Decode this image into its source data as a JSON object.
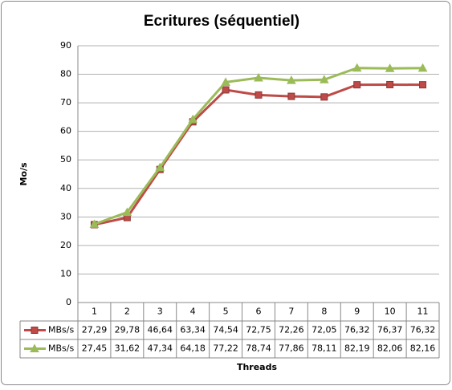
{
  "chart_data": {
    "type": "line",
    "title": "Ecritures (séquentiel)",
    "x_label": "Threads",
    "y_label": "Mo/s",
    "categories": [
      "1",
      "2",
      "3",
      "4",
      "5",
      "6",
      "7",
      "8",
      "9",
      "10",
      "11"
    ],
    "series": [
      {
        "name": "MBs/s",
        "color": "#be4b48",
        "marker": "square",
        "values": [
          27.29,
          29.78,
          46.64,
          63.34,
          74.54,
          72.75,
          72.26,
          72.05,
          76.32,
          76.37,
          76.32
        ],
        "value_labels": [
          "27,29",
          "29,78",
          "46,64",
          "63,34",
          "74,54",
          "72,75",
          "72,26",
          "72,05",
          "76,32",
          "76,37",
          "76,32"
        ]
      },
      {
        "name": "MBs/s",
        "color": "#9bbb59",
        "marker": "triangle",
        "values": [
          27.45,
          31.62,
          47.34,
          64.18,
          77.22,
          78.74,
          77.86,
          78.11,
          82.19,
          82.06,
          82.16
        ],
        "value_labels": [
          "27,45",
          "31,62",
          "47,34",
          "64,18",
          "77,22",
          "78,74",
          "77,86",
          "78,11",
          "82,19",
          "82,06",
          "82,16"
        ]
      }
    ],
    "ylim": [
      0,
      90
    ],
    "yticks": [
      0,
      10,
      20,
      30,
      40,
      50,
      60,
      70,
      80,
      90
    ],
    "grid": true,
    "data_table": true
  }
}
